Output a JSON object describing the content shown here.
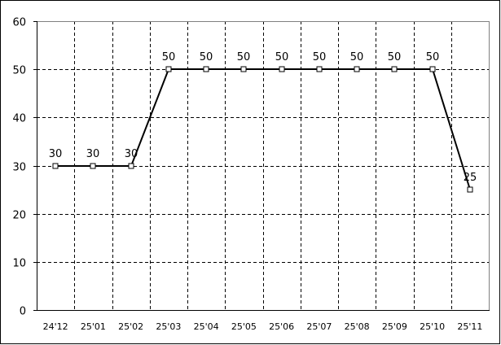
{
  "chart_data": {
    "type": "line",
    "title": "",
    "xlabel": "",
    "ylabel": "",
    "categories": [
      "24'12",
      "25'01",
      "25'02",
      "25'03",
      "25'04",
      "25'05",
      "25'06",
      "25'07",
      "25'08",
      "25'09",
      "25'10",
      "25'11"
    ],
    "series": [
      {
        "values": [
          30,
          30,
          30,
          50,
          50,
          50,
          50,
          50,
          50,
          50,
          50,
          25
        ],
        "color": "#000000",
        "marker": "hollow-square",
        "data_labels": true
      }
    ],
    "ylim": [
      0,
      60
    ],
    "yticks": [
      0,
      10,
      20,
      30,
      40,
      50,
      60
    ],
    "grid": "dashed",
    "legend": "none"
  }
}
